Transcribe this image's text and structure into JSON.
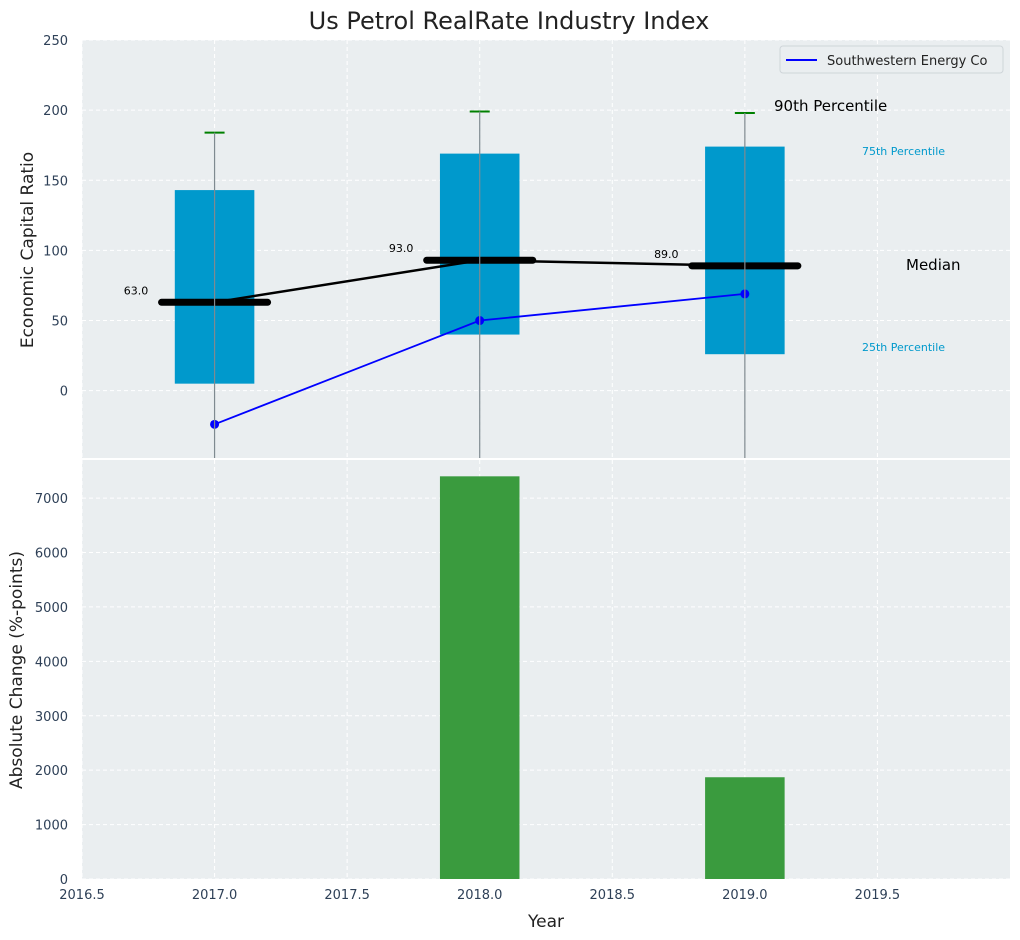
{
  "title": "Us Petrol RealRate Industry Index",
  "colors": {
    "box": "#0099cc",
    "median": "#000000",
    "whisker_cap": "#008000",
    "company": "#0000ff",
    "bar": "#3a9b3e",
    "panel_bg": "#eaeef0"
  },
  "chart_data": [
    {
      "type": "box",
      "ylabel": "Economic Capital Ratio",
      "ylim": [
        -48,
        250
      ],
      "yticks": [
        "0",
        "50",
        "100",
        "150",
        "200",
        "250"
      ],
      "ytick_values": [
        0,
        50,
        100,
        150,
        200,
        250
      ],
      "xlim": [
        2016.5,
        2020.0
      ],
      "boxes": [
        {
          "x": 2017.0,
          "p25": 5,
          "median": 63,
          "p75": 143,
          "p90": 184
        },
        {
          "x": 2018.0,
          "p25": 40,
          "median": 93,
          "p75": 169,
          "p90": 199
        },
        {
          "x": 2019.0,
          "p25": 26,
          "median": 89,
          "p75": 174,
          "p90": 198
        }
      ],
      "median_labels": [
        "63.0",
        "93.0",
        "89.0"
      ],
      "series": [
        {
          "name": "Southwestern Energy Co",
          "x": [
            2017.0,
            2018.0,
            2019.0
          ],
          "values": [
            -24,
            50,
            69
          ]
        }
      ],
      "annotations": {
        "p90": "90th Percentile",
        "p75": "75th Percentile",
        "median": "Median",
        "p25": "25th Percentile"
      },
      "legend": "top-right"
    },
    {
      "type": "bar",
      "ylabel": "Absolute Change (%-points)",
      "xlabel": "Year",
      "ylim": [
        0,
        7700
      ],
      "yticks": [
        "0",
        "1000",
        "2000",
        "3000",
        "4000",
        "5000",
        "6000",
        "7000"
      ],
      "ytick_values": [
        0,
        1000,
        2000,
        3000,
        4000,
        5000,
        6000,
        7000
      ],
      "xlim": [
        2016.5,
        2020.0
      ],
      "xticks": [
        "2016.5",
        "2017.0",
        "2017.5",
        "2018.0",
        "2018.5",
        "2019.0",
        "2019.5"
      ],
      "xtick_values": [
        2016.5,
        2017.0,
        2017.5,
        2018.0,
        2018.5,
        2019.0,
        2019.5
      ],
      "x": [
        2018.0,
        2019.0
      ],
      "values": [
        7400,
        1870
      ]
    }
  ]
}
